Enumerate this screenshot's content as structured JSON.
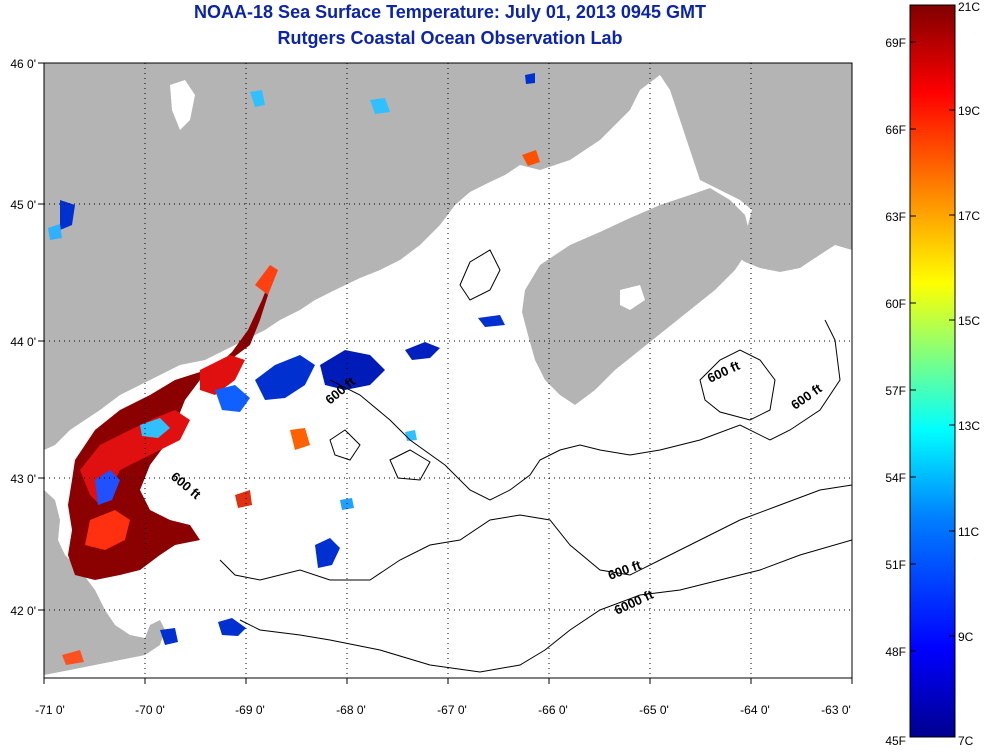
{
  "title_line1": "NOAA-18 Sea Surface Temperature:  July 01, 2013 0945 GMT",
  "title_line2": "Rutgers Coastal Ocean Observation Lab",
  "map": {
    "lon_ticks": [
      "-71 0'",
      "-70 0'",
      "-69 0'",
      "-68 0'",
      "-67 0'",
      "-66 0'",
      "-65 0'",
      "-64 0'",
      "-63 0'"
    ],
    "lat_ticks": [
      "46 0'",
      "45 0'",
      "44 0'",
      "43 0'",
      "42 0'"
    ],
    "lon_range": [
      -71,
      -63
    ],
    "lat_range": [
      41.5,
      46
    ],
    "land_color": "#b4b4b4",
    "grid": "dotted",
    "depth_labels": [
      "600 ft",
      "600 ft",
      "600 ft",
      "600 ft",
      "600 ft",
      "6000 ft"
    ]
  },
  "colorbar": {
    "fahrenheit_labels": [
      "69F",
      "66F",
      "63F",
      "60F",
      "57F",
      "54F",
      "51F",
      "48F",
      "45F"
    ],
    "celsius_labels": [
      "21C",
      "19C",
      "17C",
      "15C",
      "13C",
      "11C",
      "9C",
      "7C"
    ],
    "range_c": [
      7,
      21
    ],
    "colors": [
      "#00008f",
      "#0000ff",
      "#0080ff",
      "#00ffff",
      "#80ff80",
      "#ffff00",
      "#ff8000",
      "#ff0000",
      "#800000"
    ]
  }
}
